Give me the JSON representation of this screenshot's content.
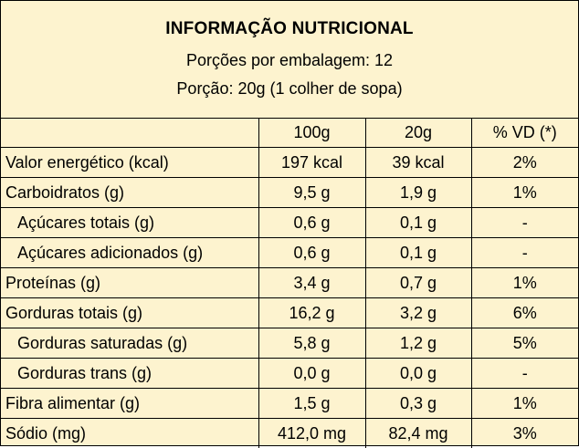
{
  "header": {
    "title": "INFORMAÇÃO NUTRICIONAL",
    "servings_per_package": "Porções por embalagem: 12",
    "serving_size": "Porção: 20g (1 colher de sopa)"
  },
  "table": {
    "columns": [
      "",
      "100g",
      "20g",
      "% VD (*)"
    ],
    "rows": [
      {
        "name": "Valor energético (kcal)",
        "v100": "197 kcal",
        "v20": "39 kcal",
        "vd": "2%",
        "indent": false
      },
      {
        "name": "Carboidratos (g)",
        "v100": "9,5 g",
        "v20": "1,9 g",
        "vd": "1%",
        "indent": false
      },
      {
        "name": "Açúcares totais (g)",
        "v100": "0,6 g",
        "v20": "0,1 g",
        "vd": "-",
        "indent": true
      },
      {
        "name": "Açúcares adicionados (g)",
        "v100": "0,6 g",
        "v20": "0,1 g",
        "vd": "-",
        "indent": true
      },
      {
        "name": "Proteínas (g)",
        "v100": "3,4 g",
        "v20": "0,7 g",
        "vd": "1%",
        "indent": false
      },
      {
        "name": "Gorduras totais (g)",
        "v100": "16,2 g",
        "v20": "3,2 g",
        "vd": "6%",
        "indent": false
      },
      {
        "name": "Gorduras saturadas (g)",
        "v100": "5,8 g",
        "v20": "1,2 g",
        "vd": "5%",
        "indent": true
      },
      {
        "name": "Gorduras trans (g)",
        "v100": "0,0 g",
        "v20": "0,0 g",
        "vd": "-",
        "indent": true
      },
      {
        "name": "Fibra alimentar (g)",
        "v100": "1,5 g",
        "v20": "0,3 g",
        "vd": "1%",
        "indent": false
      },
      {
        "name": "Sódio (mg)",
        "v100": "412,0 mg",
        "v20": "82,4 mg",
        "vd": "3%",
        "indent": false
      }
    ]
  },
  "colors": {
    "background": "#fdf3cf",
    "border": "#000000",
    "text": "#000000"
  }
}
